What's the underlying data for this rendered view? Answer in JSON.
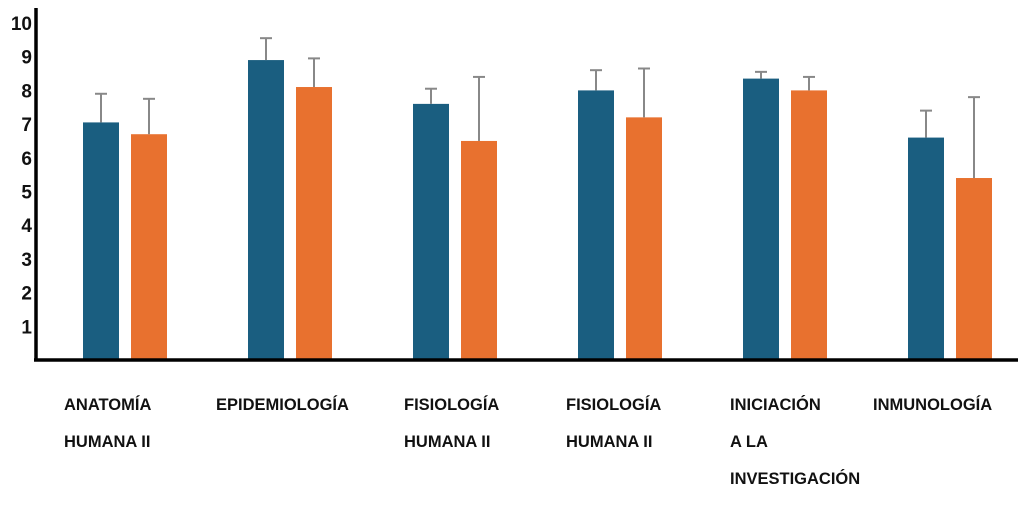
{
  "chart_data": {
    "type": "bar",
    "categories": [
      [
        "ANATOMÍA",
        "HUMANA II"
      ],
      [
        "EPIDEMIOLOGÍA"
      ],
      [
        "FISIOLOGÍA",
        "HUMANA II"
      ],
      [
        "FISIOLOGÍA",
        "HUMANA II"
      ],
      [
        "INICIACIÓN",
        "A LA",
        "INVESTIGACIÓN"
      ],
      [
        "INMUNOLOGÍA"
      ]
    ],
    "series": [
      {
        "color": "#1a5e80",
        "values": [
          7.05,
          8.9,
          7.6,
          8.0,
          8.35,
          6.6
        ],
        "errors": [
          0.85,
          0.65,
          0.45,
          0.6,
          0.2,
          0.8
        ]
      },
      {
        "color": "#e8712f",
        "values": [
          6.7,
          8.1,
          6.5,
          7.2,
          8.0,
          5.4
        ],
        "errors": [
          1.05,
          0.85,
          1.9,
          1.45,
          0.4,
          2.4
        ]
      }
    ],
    "y_ticks": [
      "1",
      "2",
      "3",
      "4",
      "5",
      "6",
      "7",
      "8",
      "9",
      "10"
    ],
    "ylim": [
      0,
      10
    ],
    "xlabel": "",
    "ylabel": "",
    "title": "",
    "grid": false,
    "legend": "none",
    "error_bar_color": "#888888",
    "axis_color": "#000000"
  }
}
